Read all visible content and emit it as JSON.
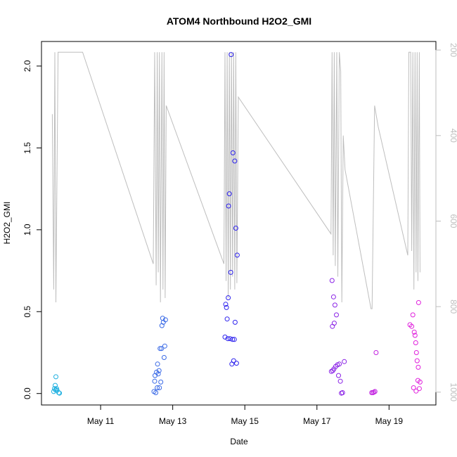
{
  "chart_data": {
    "type": "scatter",
    "title": "ATOM4 Northbound H2O2_GMI",
    "xlabel": "Date",
    "ylabel": "H2O2_GMI",
    "x_unit": "day of May 2018",
    "x_ticks": [
      {
        "value": 11,
        "label": "May 11"
      },
      {
        "value": 13,
        "label": "May 13"
      },
      {
        "value": 15,
        "label": "May 15"
      },
      {
        "value": 17,
        "label": "May 17"
      },
      {
        "value": 19,
        "label": "May 19"
      }
    ],
    "y_ticks": [
      {
        "value": 0.0,
        "label": "0.0"
      },
      {
        "value": 0.5,
        "label": "0.5"
      },
      {
        "value": 1.0,
        "label": "1.0"
      },
      {
        "value": 1.5,
        "label": "1.5"
      },
      {
        "value": 2.0,
        "label": "2.0"
      }
    ],
    "y2_ticks": [
      {
        "value": 200,
        "label": "200"
      },
      {
        "value": 400,
        "label": "400"
      },
      {
        "value": 600,
        "label": "600"
      },
      {
        "value": 800,
        "label": "800"
      },
      {
        "value": 1000,
        "label": "1000"
      }
    ],
    "xlim": [
      9.36,
      20.3
    ],
    "ylim": [
      -0.07,
      2.15
    ],
    "y2lim": [
      1030,
      180
    ],
    "y2_reversed": true,
    "grid": false,
    "legend": "none",
    "colors": {
      "pressure_line": "#bebebe",
      "flight1": "#1fb0e0",
      "flight2": "#3a6ae6",
      "flight3": "#2d22ee",
      "flight4": "#8a22e6",
      "flight5": "#c223e0",
      "flight6": "#e020dc"
    },
    "series": [
      {
        "color_key": "flight1",
        "points": [
          [
            9.7,
            0.012
          ],
          [
            9.72,
            0.03
          ],
          [
            9.74,
            0.05
          ],
          [
            9.75,
            0.022
          ],
          [
            9.76,
            0.102
          ],
          [
            9.78,
            0.03
          ],
          [
            9.79,
            0.02
          ],
          [
            9.84,
            0.005
          ],
          [
            9.86,
            0.002
          ]
        ]
      },
      {
        "color_key": "flight2",
        "points": [
          [
            12.48,
            0.012
          ],
          [
            12.5,
            0.075
          ],
          [
            12.51,
            0.11
          ],
          [
            12.53,
            0.005
          ],
          [
            12.55,
            0.13
          ],
          [
            12.57,
            0.035
          ],
          [
            12.58,
            0.18
          ],
          [
            12.6,
            0.12
          ],
          [
            12.62,
            0.14
          ],
          [
            12.63,
            0.035
          ],
          [
            12.65,
            0.275
          ],
          [
            12.67,
            0.07
          ],
          [
            12.69,
            0.275
          ],
          [
            12.7,
            0.415
          ],
          [
            12.72,
            0.46
          ],
          [
            12.74,
            0.435
          ],
          [
            12.76,
            0.22
          ],
          [
            12.78,
            0.29
          ],
          [
            12.8,
            0.45
          ]
        ]
      },
      {
        "color_key": "flight3",
        "points": [
          [
            14.45,
            0.345
          ],
          [
            14.47,
            0.545
          ],
          [
            14.49,
            0.525
          ],
          [
            14.51,
            0.455
          ],
          [
            14.53,
            0.335
          ],
          [
            14.54,
            0.585
          ],
          [
            14.55,
            1.145
          ],
          [
            14.57,
            1.22
          ],
          [
            14.59,
            0.335
          ],
          [
            14.61,
            0.74
          ],
          [
            14.62,
            2.07
          ],
          [
            14.64,
            0.18
          ],
          [
            14.66,
            0.33
          ],
          [
            14.67,
            1.47
          ],
          [
            14.69,
            0.2
          ],
          [
            14.71,
            0.33
          ],
          [
            14.72,
            1.42
          ],
          [
            14.73,
            0.435
          ],
          [
            14.75,
            1.01
          ],
          [
            14.77,
            0.185
          ],
          [
            14.79,
            0.845
          ]
        ]
      },
      {
        "color_key": "flight4",
        "points": [
          [
            17.4,
            0.135
          ],
          [
            17.42,
            0.69
          ],
          [
            17.43,
            0.41
          ],
          [
            17.44,
            0.14
          ],
          [
            17.46,
            0.59
          ],
          [
            17.47,
            0.15
          ],
          [
            17.48,
            0.43
          ],
          [
            17.5,
            0.54
          ],
          [
            17.52,
            0.165
          ],
          [
            17.54,
            0.48
          ],
          [
            17.57,
            0.175
          ],
          [
            17.6,
            0.11
          ],
          [
            17.62,
            0.18
          ],
          [
            17.65,
            0.075
          ],
          [
            17.68,
            0.002
          ],
          [
            17.71,
            0.005
          ],
          [
            17.76,
            0.195
          ]
        ]
      },
      {
        "color_key": "flight5",
        "points": [
          [
            18.52,
            0.005
          ],
          [
            18.55,
            0.005
          ],
          [
            18.58,
            0.008
          ],
          [
            18.61,
            0.012
          ],
          [
            18.64,
            0.25
          ]
        ]
      },
      {
        "color_key": "flight6",
        "points": [
          [
            19.58,
            0.42
          ],
          [
            19.63,
            0.41
          ],
          [
            19.66,
            0.48
          ],
          [
            19.68,
            0.035
          ],
          [
            19.7,
            0.375
          ],
          [
            19.72,
            0.355
          ],
          [
            19.74,
            0.31
          ],
          [
            19.75,
            0.015
          ],
          [
            19.76,
            0.25
          ],
          [
            19.78,
            0.2
          ],
          [
            19.8,
            0.08
          ],
          [
            19.81,
            0.16
          ],
          [
            19.82,
            0.555
          ],
          [
            19.84,
            0.03
          ],
          [
            19.86,
            0.07
          ]
        ]
      }
    ],
    "pressure_profile": {
      "axis": "right",
      "points": [
        [
          9.66,
          350
        ],
        [
          9.7,
          760
        ],
        [
          9.73,
          205
        ],
        [
          9.76,
          790
        ],
        [
          9.82,
          205
        ],
        [
          9.86,
          205
        ],
        [
          10.2,
          205
        ],
        [
          10.5,
          205
        ],
        [
          12.46,
          700
        ],
        [
          12.5,
          205
        ],
        [
          12.54,
          750
        ],
        [
          12.57,
          205
        ],
        [
          12.6,
          720
        ],
        [
          12.63,
          205
        ],
        [
          12.66,
          790
        ],
        [
          12.7,
          205
        ],
        [
          12.73,
          760
        ],
        [
          12.76,
          205
        ],
        [
          12.79,
          780
        ],
        [
          12.82,
          330
        ],
        [
          14.42,
          700
        ],
        [
          14.45,
          205
        ],
        [
          14.48,
          740
        ],
        [
          14.51,
          205
        ],
        [
          14.54,
          780
        ],
        [
          14.57,
          205
        ],
        [
          14.6,
          760
        ],
        [
          14.63,
          205
        ],
        [
          14.66,
          730
        ],
        [
          14.69,
          205
        ],
        [
          14.72,
          760
        ],
        [
          14.75,
          205
        ],
        [
          14.78,
          745
        ],
        [
          14.82,
          310
        ],
        [
          17.39,
          630
        ],
        [
          17.42,
          205
        ],
        [
          17.45,
          680
        ],
        [
          17.48,
          205
        ],
        [
          17.51,
          705
        ],
        [
          17.55,
          205
        ],
        [
          17.58,
          730
        ],
        [
          17.62,
          205
        ],
        [
          17.66,
          250
        ],
        [
          17.69,
          790
        ],
        [
          17.73,
          400
        ],
        [
          17.78,
          480
        ],
        [
          18.5,
          805
        ],
        [
          18.53,
          805
        ],
        [
          18.6,
          330
        ],
        [
          18.7,
          380
        ],
        [
          19.52,
          680
        ],
        [
          19.55,
          205
        ],
        [
          19.6,
          205
        ],
        [
          19.63,
          670
        ],
        [
          19.66,
          205
        ],
        [
          19.69,
          760
        ],
        [
          19.72,
          205
        ],
        [
          19.75,
          720
        ],
        [
          19.78,
          205
        ],
        [
          19.8,
          740
        ],
        [
          19.84,
          205
        ],
        [
          19.86,
          720
        ]
      ]
    }
  }
}
